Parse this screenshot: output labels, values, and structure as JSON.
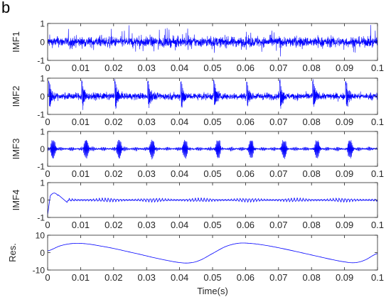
{
  "panel_label": "b",
  "chart_data": [
    {
      "type": "line",
      "ylabel": "IMF1",
      "xlim": [
        0,
        0.1
      ],
      "ylim": [
        -1,
        1
      ],
      "xticks": [
        "0",
        "0.01",
        "0.02",
        "0.03",
        "0.04",
        "0.05",
        "0.06",
        "0.07",
        "0.08",
        "0.09",
        "0.1"
      ],
      "yticks": [
        "-1",
        "0",
        "1"
      ],
      "color": "#0000ff",
      "signal": "broadband high-frequency noise, amplitude about 0.5"
    },
    {
      "type": "line",
      "ylabel": "IMF2",
      "xlim": [
        0,
        0.1
      ],
      "ylim": [
        -1,
        1
      ],
      "xticks": [
        "0",
        "0.01",
        "0.02",
        "0.03",
        "0.04",
        "0.05",
        "0.06",
        "0.07",
        "0.08",
        "0.09",
        "0.1"
      ],
      "yticks": [
        "-1",
        "0",
        "1"
      ],
      "color": "#0000ff",
      "impulse_times": [
        0.0005,
        0.0105,
        0.0205,
        0.0305,
        0.0405,
        0.0505,
        0.0605,
        0.0705,
        0.0805,
        0.0905
      ]
    },
    {
      "type": "line",
      "ylabel": "IMF3",
      "xlim": [
        0,
        0.1
      ],
      "ylim": [
        -1,
        1
      ],
      "xticks": [
        "0",
        "0.01",
        "0.02",
        "0.03",
        "0.04",
        "0.05",
        "0.06",
        "0.07",
        "0.08",
        "0.09",
        "0.1"
      ],
      "yticks": [
        "-1",
        "0",
        "1"
      ],
      "color": "#0000ff",
      "impulse_times": [
        0.0005,
        0.0105,
        0.0205,
        0.0305,
        0.0405,
        0.0505,
        0.0605,
        0.0705,
        0.0805,
        0.0905
      ]
    },
    {
      "type": "line",
      "ylabel": "IMF4",
      "xlim": [
        0,
        0.1
      ],
      "ylim": [
        -1,
        1
      ],
      "xticks": [
        "0",
        "0.01",
        "0.02",
        "0.03",
        "0.04",
        "0.05",
        "0.06",
        "0.07",
        "0.08",
        "0.09",
        "0.1"
      ],
      "yticks": [
        "-1",
        "0",
        "1"
      ],
      "color": "#0000ff",
      "signal": "initial hump to about 0.4 near t=0.003, then small oscillation of about 0.1"
    },
    {
      "type": "line",
      "ylabel": "Res.",
      "xlabel": "Time(s)",
      "xlim": [
        0,
        0.1
      ],
      "ylim": [
        -10,
        10
      ],
      "xticks": [
        "0",
        "0.01",
        "0.02",
        "0.03",
        "0.04",
        "0.05",
        "0.06",
        "0.07",
        "0.08",
        "0.09",
        "0.1"
      ],
      "yticks": [
        "-10",
        "0",
        "10"
      ],
      "color": "#0000ff",
      "x": [
        0,
        0.004,
        0.008,
        0.012,
        0.016,
        0.02,
        0.024,
        0.028,
        0.032,
        0.036,
        0.04,
        0.043,
        0.046,
        0.05,
        0.054,
        0.058,
        0.062,
        0.066,
        0.07,
        0.074,
        0.078,
        0.082,
        0.086,
        0.09,
        0.093,
        0.096,
        0.1
      ],
      "y": [
        1,
        4,
        5.3,
        5,
        3.8,
        2.4,
        0.7,
        -1,
        -2.8,
        -4.4,
        -5.7,
        -5.9,
        -4.5,
        -0.5,
        3.5,
        5.4,
        5.2,
        4.2,
        2.8,
        1.2,
        -0.5,
        -2.2,
        -3.9,
        -5.3,
        -5.8,
        -4.4,
        -0.5
      ]
    }
  ]
}
